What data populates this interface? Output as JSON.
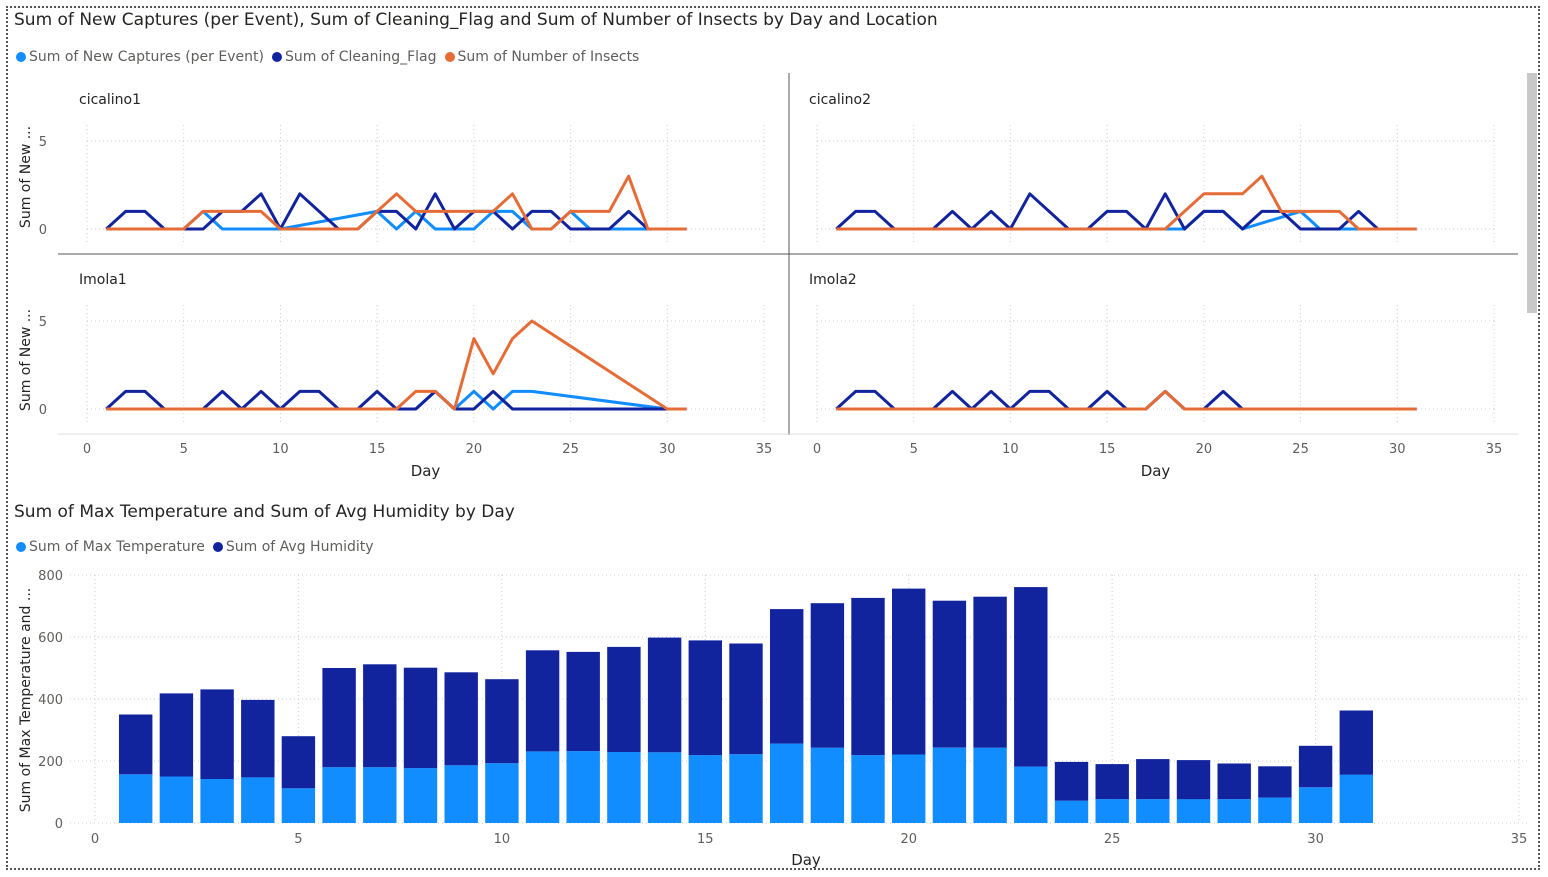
{
  "chart_data": [
    {
      "type": "line",
      "title": "Sum of New Captures (per Event), Sum of Cleaning_Flag and Sum of Number of Insects by Day and Location",
      "xlabel": "Day",
      "ylabel": "Sum of New ...",
      "xlim": [
        0,
        35
      ],
      "ylim": [
        0,
        6
      ],
      "xticks": [
        0,
        5,
        10,
        15,
        20,
        25,
        30,
        35
      ],
      "yticks": [
        0,
        5
      ],
      "legend": [
        {
          "name": "Sum of New Captures (per Event)",
          "color": "#118DFF"
        },
        {
          "name": "Sum of Cleaning_Flag",
          "color": "#12239E"
        },
        {
          "name": "Sum of Number of Insects",
          "color": "#E66C37"
        }
      ],
      "panels": [
        {
          "name": "cicalino1",
          "series": [
            {
              "name": "Sum of New Captures (per Event)",
              "color": "#118DFF",
              "points": [
                [
                  1,
                  0
                ],
                [
                  5,
                  0
                ],
                [
                  6,
                  1
                ],
                [
                  7,
                  0
                ],
                [
                  10,
                  0
                ],
                [
                  15,
                  1
                ],
                [
                  16,
                  0
                ],
                [
                  17,
                  1
                ],
                [
                  18,
                  0
                ],
                [
                  20,
                  0
                ],
                [
                  21,
                  1
                ],
                [
                  22,
                  1
                ],
                [
                  23,
                  0
                ],
                [
                  24,
                  0
                ],
                [
                  25,
                  1
                ],
                [
                  26,
                  0
                ],
                [
                  31,
                  0
                ]
              ]
            },
            {
              "name": "Sum of Cleaning_Flag",
              "color": "#12239E",
              "points": [
                [
                  1,
                  0
                ],
                [
                  2,
                  1
                ],
                [
                  3,
                  1
                ],
                [
                  4,
                  0
                ],
                [
                  6,
                  0
                ],
                [
                  7,
                  1
                ],
                [
                  8,
                  1
                ],
                [
                  9,
                  2
                ],
                [
                  10,
                  0
                ],
                [
                  11,
                  2
                ],
                [
                  13,
                  0
                ],
                [
                  14,
                  0
                ],
                [
                  15,
                  1
                ],
                [
                  16,
                  1
                ],
                [
                  17,
                  0
                ],
                [
                  18,
                  2
                ],
                [
                  19,
                  0
                ],
                [
                  20,
                  1
                ],
                [
                  21,
                  1
                ],
                [
                  22,
                  0
                ],
                [
                  23,
                  1
                ],
                [
                  24,
                  1
                ],
                [
                  25,
                  0
                ],
                [
                  27,
                  0
                ],
                [
                  28,
                  1
                ],
                [
                  29,
                  0
                ],
                [
                  31,
                  0
                ]
              ]
            },
            {
              "name": "Sum of Number of Insects",
              "color": "#E66C37",
              "points": [
                [
                  1,
                  0
                ],
                [
                  5,
                  0
                ],
                [
                  6,
                  1
                ],
                [
                  9,
                  1
                ],
                [
                  10,
                  0
                ],
                [
                  14,
                  0
                ],
                [
                  15,
                  1
                ],
                [
                  16,
                  2
                ],
                [
                  17,
                  1
                ],
                [
                  21,
                  1
                ],
                [
                  22,
                  2
                ],
                [
                  23,
                  0
                ],
                [
                  24,
                  0
                ],
                [
                  25,
                  1
                ],
                [
                  27,
                  1
                ],
                [
                  28,
                  3
                ],
                [
                  29,
                  0
                ],
                [
                  31,
                  0
                ]
              ]
            }
          ]
        },
        {
          "name": "cicalino2",
          "series": [
            {
              "name": "Sum of New Captures (per Event)",
              "color": "#118DFF",
              "points": [
                [
                  1,
                  0
                ],
                [
                  19,
                  0
                ],
                [
                  20,
                  1
                ],
                [
                  21,
                  1
                ],
                [
                  22,
                  0
                ],
                [
                  25,
                  1
                ],
                [
                  26,
                  0
                ],
                [
                  31,
                  0
                ]
              ]
            },
            {
              "name": "Sum of Cleaning_Flag",
              "color": "#12239E",
              "points": [
                [
                  1,
                  0
                ],
                [
                  2,
                  1
                ],
                [
                  3,
                  1
                ],
                [
                  4,
                  0
                ],
                [
                  6,
                  0
                ],
                [
                  7,
                  1
                ],
                [
                  8,
                  0
                ],
                [
                  9,
                  1
                ],
                [
                  10,
                  0
                ],
                [
                  11,
                  2
                ],
                [
                  13,
                  0
                ],
                [
                  14,
                  0
                ],
                [
                  15,
                  1
                ],
                [
                  16,
                  1
                ],
                [
                  17,
                  0
                ],
                [
                  18,
                  2
                ],
                [
                  19,
                  0
                ],
                [
                  20,
                  1
                ],
                [
                  21,
                  1
                ],
                [
                  22,
                  0
                ],
                [
                  23,
                  1
                ],
                [
                  24,
                  1
                ],
                [
                  25,
                  0
                ],
                [
                  27,
                  0
                ],
                [
                  28,
                  1
                ],
                [
                  29,
                  0
                ],
                [
                  31,
                  0
                ]
              ]
            },
            {
              "name": "Sum of Number of Insects",
              "color": "#E66C37",
              "points": [
                [
                  1,
                  0
                ],
                [
                  18,
                  0
                ],
                [
                  19,
                  1
                ],
                [
                  20,
                  2
                ],
                [
                  22,
                  2
                ],
                [
                  23,
                  3
                ],
                [
                  24,
                  1
                ],
                [
                  27,
                  1
                ],
                [
                  28,
                  0
                ],
                [
                  31,
                  0
                ]
              ]
            }
          ]
        },
        {
          "name": "Imola1",
          "series": [
            {
              "name": "Sum of New Captures (per Event)",
              "color": "#118DFF",
              "points": [
                [
                  1,
                  0
                ],
                [
                  17,
                  0
                ],
                [
                  18,
                  1
                ],
                [
                  19,
                  0
                ],
                [
                  20,
                  1
                ],
                [
                  21,
                  0
                ],
                [
                  22,
                  1
                ],
                [
                  23,
                  1
                ],
                [
                  30,
                  0
                ],
                [
                  31,
                  0
                ]
              ]
            },
            {
              "name": "Sum of Cleaning_Flag",
              "color": "#12239E",
              "points": [
                [
                  1,
                  0
                ],
                [
                  2,
                  1
                ],
                [
                  3,
                  1
                ],
                [
                  4,
                  0
                ],
                [
                  6,
                  0
                ],
                [
                  7,
                  1
                ],
                [
                  8,
                  0
                ],
                [
                  9,
                  1
                ],
                [
                  10,
                  0
                ],
                [
                  11,
                  1
                ],
                [
                  12,
                  1
                ],
                [
                  13,
                  0
                ],
                [
                  14,
                  0
                ],
                [
                  15,
                  1
                ],
                [
                  16,
                  0
                ],
                [
                  17,
                  0
                ],
                [
                  18,
                  1
                ],
                [
                  19,
                  0
                ],
                [
                  20,
                  0
                ],
                [
                  21,
                  1
                ],
                [
                  22,
                  0
                ],
                [
                  31,
                  0
                ]
              ]
            },
            {
              "name": "Sum of Number of Insects",
              "color": "#E66C37",
              "points": [
                [
                  1,
                  0
                ],
                [
                  16,
                  0
                ],
                [
                  17,
                  1
                ],
                [
                  18,
                  1
                ],
                [
                  19,
                  0
                ],
                [
                  20,
                  4
                ],
                [
                  21,
                  2
                ],
                [
                  22,
                  4
                ],
                [
                  23,
                  5
                ],
                [
                  30,
                  0
                ],
                [
                  31,
                  0
                ]
              ]
            }
          ]
        },
        {
          "name": "Imola2",
          "series": [
            {
              "name": "Sum of New Captures (per Event)",
              "color": "#118DFF",
              "points": [
                [
                  1,
                  0
                ],
                [
                  17,
                  0
                ],
                [
                  18,
                  1
                ],
                [
                  19,
                  0
                ],
                [
                  31,
                  0
                ]
              ]
            },
            {
              "name": "Sum of Cleaning_Flag",
              "color": "#12239E",
              "points": [
                [
                  1,
                  0
                ],
                [
                  2,
                  1
                ],
                [
                  3,
                  1
                ],
                [
                  4,
                  0
                ],
                [
                  6,
                  0
                ],
                [
                  7,
                  1
                ],
                [
                  8,
                  0
                ],
                [
                  9,
                  1
                ],
                [
                  10,
                  0
                ],
                [
                  11,
                  1
                ],
                [
                  12,
                  1
                ],
                [
                  13,
                  0
                ],
                [
                  14,
                  0
                ],
                [
                  15,
                  1
                ],
                [
                  16,
                  0
                ],
                [
                  17,
                  0
                ],
                [
                  18,
                  1
                ],
                [
                  19,
                  0
                ],
                [
                  20,
                  0
                ],
                [
                  21,
                  1
                ],
                [
                  22,
                  0
                ],
                [
                  31,
                  0
                ]
              ]
            },
            {
              "name": "Sum of Number of Insects",
              "color": "#E66C37",
              "points": [
                [
                  1,
                  0
                ],
                [
                  17,
                  0
                ],
                [
                  18,
                  1
                ],
                [
                  19,
                  0
                ],
                [
                  31,
                  0
                ]
              ]
            }
          ]
        }
      ]
    },
    {
      "type": "bar",
      "stacked": true,
      "title": "Sum of Max Temperature and Sum of Avg Humidity by Day",
      "xlabel": "Day",
      "ylabel": "Sum of Max Temperature and ...",
      "xlim": [
        0,
        35
      ],
      "ylim": [
        0,
        800
      ],
      "xticks": [
        0,
        5,
        10,
        15,
        20,
        25,
        30,
        35
      ],
      "yticks": [
        0,
        200,
        400,
        600,
        800
      ],
      "x": [
        1,
        2,
        3,
        4,
        5,
        6,
        7,
        8,
        9,
        10,
        11,
        12,
        13,
        14,
        15,
        16,
        17,
        18,
        19,
        20,
        21,
        22,
        23,
        24,
        25,
        26,
        27,
        28,
        29,
        30,
        31
      ],
      "series": [
        {
          "name": "Sum of Max Temperature",
          "color": "#118DFF",
          "values": [
            157,
            150,
            142,
            147,
            112,
            180,
            180,
            177,
            186,
            193,
            231,
            232,
            229,
            228,
            219,
            222,
            256,
            243,
            219,
            221,
            243,
            243,
            182,
            72,
            77,
            77,
            77,
            77,
            82,
            115,
            156
          ]
        },
        {
          "name": "Sum of Avg Humidity",
          "color": "#12239E",
          "values": [
            193,
            268,
            289,
            250,
            168,
            320,
            332,
            324,
            300,
            271,
            326,
            320,
            339,
            370,
            370,
            357,
            434,
            466,
            507,
            535,
            474,
            487,
            579,
            125,
            113,
            129,
            126,
            115,
            101,
            134,
            207
          ]
        }
      ]
    }
  ]
}
